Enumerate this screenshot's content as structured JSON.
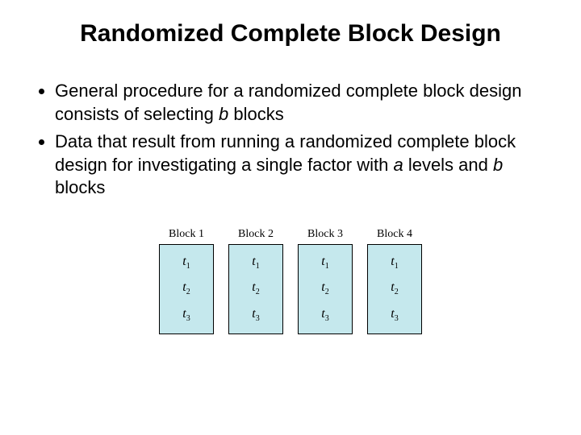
{
  "title": "Randomized Complete Block Design",
  "bullets": [
    {
      "prefix": "General procedure for a randomized complete block design consists of selecting ",
      "italic1": "b",
      "suffix": " blocks"
    },
    {
      "prefix": "Data that result from running a randomized complete block design for investigating a single factor with ",
      "italic1": "a",
      "mid": " levels and ",
      "italic2": "b",
      "suffix": " blocks"
    }
  ],
  "diagram": {
    "block_fill": "#c5e8ed",
    "block_border": "#000000",
    "blocks": [
      {
        "label": "Block 1",
        "treatments": [
          "t1",
          "t2",
          "t3"
        ]
      },
      {
        "label": "Block 2",
        "treatments": [
          "t1",
          "t2",
          "t3"
        ]
      },
      {
        "label": "Block 3",
        "treatments": [
          "t1",
          "t2",
          "t3"
        ]
      },
      {
        "label": "Block 4",
        "treatments": [
          "t1",
          "t2",
          "t3"
        ]
      }
    ]
  }
}
